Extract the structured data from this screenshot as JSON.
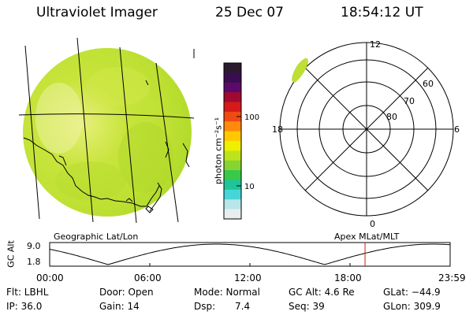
{
  "header": {
    "instrument": "Ultraviolet Imager",
    "date": "25 Dec 07",
    "time": "18:54:12 UT"
  },
  "colorbar": {
    "unit_label": "photon cm⁻²s⁻¹",
    "ticks": [
      "100",
      "10"
    ],
    "colors": [
      "#2a1a2e",
      "#3a0d50",
      "#5a0b6a",
      "#a00a30",
      "#d51a1a",
      "#f04a14",
      "#ff8a0c",
      "#ffc800",
      "#eef000",
      "#bce31c",
      "#86d432",
      "#38c84a",
      "#1ec59a",
      "#46d6d8",
      "#b8e6e8",
      "#e8eeee"
    ]
  },
  "left_panel": {
    "caption": "Geographic Lat/Lon"
  },
  "right_panel": {
    "caption": "Apex MLat/MLT",
    "mlt_labels": {
      "top": "12",
      "bottom": "0",
      "left": "18",
      "right": "6"
    },
    "lat_labels": [
      "60",
      "70",
      "80"
    ]
  },
  "altitude_plot": {
    "ylabel": "GC Alt",
    "y_ticks": [
      "9.0",
      "1.8"
    ],
    "x_ticks": [
      "00:00",
      "06:00",
      "12:00",
      "18:00",
      "23:59"
    ],
    "current_marker_hour": 18.9,
    "marker_color": "#cc2200"
  },
  "status": {
    "flt": "Flt: LBHL",
    "ip": "IP: 36.0",
    "door": "Door: Open",
    "gain": "Gain: 14",
    "mode": "Mode: Normal",
    "dsp_label": "Dsp:",
    "dsp_value": "7.4",
    "gc_alt": "GC Alt: 4.6 Re",
    "seq": "Seq: 39",
    "glat": "GLat: −44.9",
    "glon": "GLon: 309.9"
  }
}
